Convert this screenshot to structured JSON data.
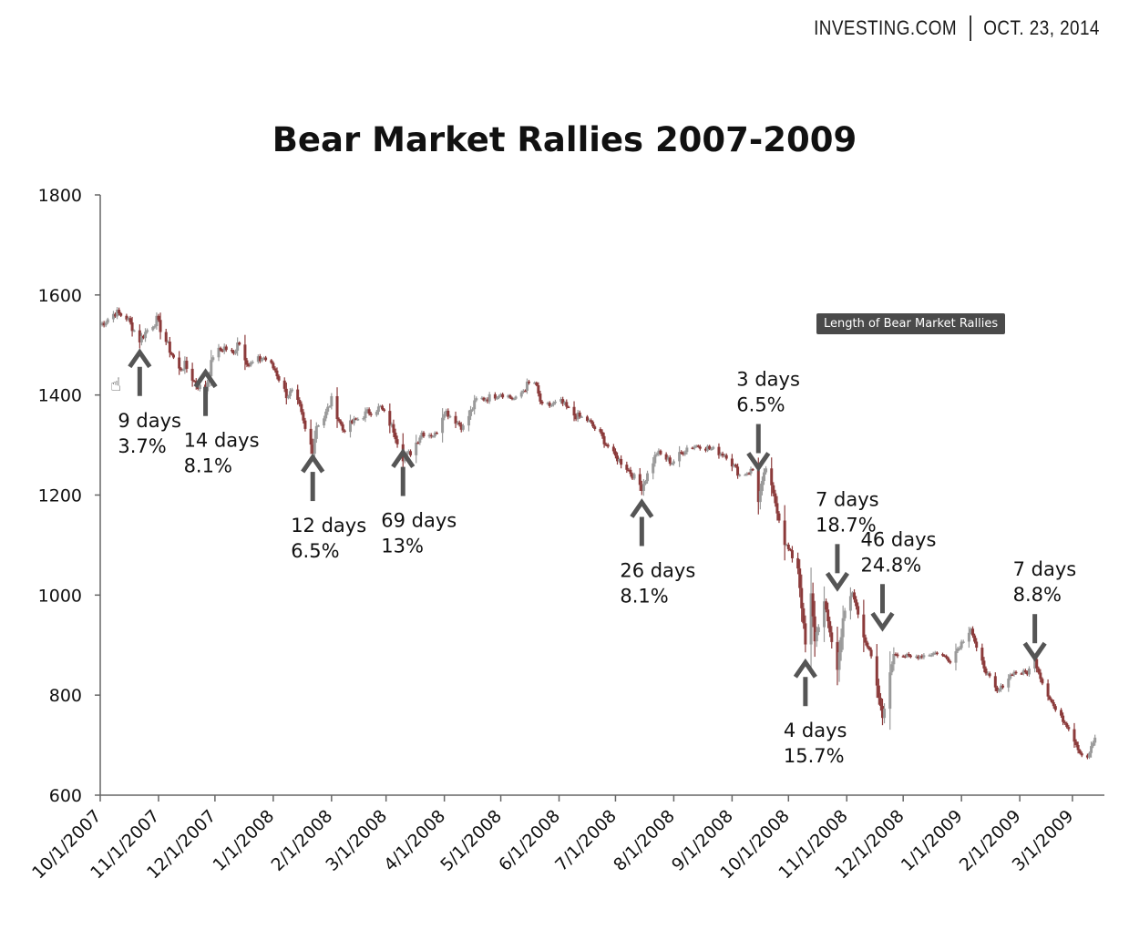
{
  "header": {
    "source": "INVESTING.COM",
    "date": "OCT. 23, 2014"
  },
  "tooltip": "Length of Bear Market Rallies",
  "chart_data": {
    "type": "line",
    "title": "Bear Market Rallies 2007-2009",
    "xlabel": "",
    "ylabel": "",
    "ylim": [
      600,
      1800
    ],
    "yticks": [
      600,
      800,
      1000,
      1200,
      1400,
      1600,
      1800
    ],
    "xlim": [
      "2007-10-01",
      "2009-03-18"
    ],
    "xticks": [
      "10/1/2007",
      "11/1/2007",
      "12/1/2007",
      "1/1/2008",
      "2/1/2008",
      "3/1/2008",
      "4/1/2008",
      "5/1/2008",
      "6/1/2008",
      "7/1/2008",
      "8/1/2008",
      "9/1/2008",
      "10/1/2008",
      "11/1/2008",
      "12/1/2008",
      "1/1/2009",
      "2/1/2009",
      "3/1/2009"
    ],
    "grid": false,
    "series": [
      {
        "values": [
          [
            "2007-10-01",
            1540
          ],
          [
            "2007-10-09",
            1565
          ],
          [
            "2007-10-15",
            1555
          ],
          [
            "2007-10-22",
            1510
          ],
          [
            "2007-10-26",
            1530
          ],
          [
            "2007-10-31",
            1550
          ],
          [
            "2007-11-07",
            1490
          ],
          [
            "2007-11-12",
            1450
          ],
          [
            "2007-11-15",
            1460
          ],
          [
            "2007-11-21",
            1420
          ],
          [
            "2007-11-26",
            1410
          ],
          [
            "2007-11-30",
            1480
          ],
          [
            "2007-12-06",
            1495
          ],
          [
            "2007-12-11",
            1480
          ],
          [
            "2007-12-13",
            1510
          ],
          [
            "2007-12-19",
            1460
          ],
          [
            "2007-12-27",
            1475
          ],
          [
            "2008-01-02",
            1450
          ],
          [
            "2008-01-08",
            1400
          ],
          [
            "2008-01-11",
            1405
          ],
          [
            "2008-01-15",
            1375
          ],
          [
            "2008-01-18",
            1330
          ],
          [
            "2008-01-22",
            1290
          ],
          [
            "2008-01-24",
            1340
          ],
          [
            "2008-01-28",
            1355
          ],
          [
            "2008-02-01",
            1390
          ],
          [
            "2008-02-07",
            1330
          ],
          [
            "2008-02-14",
            1350
          ],
          [
            "2008-02-20",
            1365
          ],
          [
            "2008-02-27",
            1375
          ],
          [
            "2008-03-05",
            1330
          ],
          [
            "2008-03-10",
            1275
          ],
          [
            "2008-03-14",
            1285
          ],
          [
            "2008-03-20",
            1325
          ],
          [
            "2008-03-27",
            1320
          ],
          [
            "2008-04-01",
            1370
          ],
          [
            "2008-04-11",
            1335
          ],
          [
            "2008-04-18",
            1390
          ],
          [
            "2008-04-25",
            1395
          ],
          [
            "2008-05-01",
            1405
          ],
          [
            "2008-05-09",
            1390
          ],
          [
            "2008-05-15",
            1420
          ],
          [
            "2008-05-19",
            1425
          ],
          [
            "2008-05-23",
            1375
          ],
          [
            "2008-06-02",
            1385
          ],
          [
            "2008-06-09",
            1360
          ],
          [
            "2008-06-16",
            1350
          ],
          [
            "2008-06-23",
            1320
          ],
          [
            "2008-06-30",
            1280
          ],
          [
            "2008-07-07",
            1255
          ],
          [
            "2008-07-15",
            1215
          ],
          [
            "2008-07-23",
            1285
          ],
          [
            "2008-07-31",
            1265
          ],
          [
            "2008-08-08",
            1295
          ],
          [
            "2008-08-15",
            1300
          ],
          [
            "2008-08-22",
            1290
          ],
          [
            "2008-08-29",
            1280
          ],
          [
            "2008-09-05",
            1240
          ],
          [
            "2008-09-12",
            1250
          ],
          [
            "2008-09-15",
            1190
          ],
          [
            "2008-09-19",
            1255
          ],
          [
            "2008-09-24",
            1185
          ],
          [
            "2008-09-29",
            1105
          ],
          [
            "2008-10-06",
            1055
          ],
          [
            "2008-10-10",
            900
          ],
          [
            "2008-10-13",
            1000
          ],
          [
            "2008-10-15",
            910
          ],
          [
            "2008-10-20",
            985
          ],
          [
            "2008-10-27",
            850
          ],
          [
            "2008-10-30",
            955
          ],
          [
            "2008-11-04",
            1005
          ],
          [
            "2008-11-10",
            920
          ],
          [
            "2008-11-14",
            875
          ],
          [
            "2008-11-20",
            755
          ],
          [
            "2008-11-26",
            885
          ],
          [
            "2008-12-05",
            875
          ],
          [
            "2008-12-12",
            880
          ],
          [
            "2008-12-19",
            885
          ],
          [
            "2008-12-26",
            870
          ],
          [
            "2009-01-06",
            935
          ],
          [
            "2009-01-09",
            890
          ],
          [
            "2009-01-15",
            840
          ],
          [
            "2009-01-20",
            805
          ],
          [
            "2009-01-28",
            845
          ],
          [
            "2009-02-05",
            845
          ],
          [
            "2009-02-09",
            870
          ],
          [
            "2009-02-13",
            825
          ],
          [
            "2009-02-20",
            770
          ],
          [
            "2009-02-27",
            735
          ],
          [
            "2009-03-05",
            685
          ],
          [
            "2009-03-09",
            676
          ],
          [
            "2009-03-13",
            715
          ]
        ]
      }
    ],
    "annotations": [
      {
        "text_line1": "9 days",
        "text_line2": "3.7%",
        "x": "2007-10-22",
        "y": 1500,
        "direction": "up"
      },
      {
        "text_line1": "14 days",
        "text_line2": "8.1%",
        "x": "2007-11-26",
        "y": 1460,
        "direction": "up"
      },
      {
        "text_line1": "12 days",
        "text_line2": "6.5%",
        "x": "2008-01-22",
        "y": 1290,
        "direction": "up"
      },
      {
        "text_line1": "69 days",
        "text_line2": "13%",
        "x": "2008-03-10",
        "y": 1300,
        "direction": "up"
      },
      {
        "text_line1": "26 days",
        "text_line2": "8.1%",
        "x": "2008-07-15",
        "y": 1200,
        "direction": "up"
      },
      {
        "text_line1": "3 days",
        "text_line2": "6.5%",
        "x": "2008-09-15",
        "y": 1240,
        "direction": "down"
      },
      {
        "text_line1": "4 days",
        "text_line2": "15.7%",
        "x": "2008-10-10",
        "y": 880,
        "direction": "up"
      },
      {
        "text_line1": "7 days",
        "text_line2": "18.7%",
        "x": "2008-10-27",
        "y": 1000,
        "direction": "down"
      },
      {
        "text_line1": "46 days",
        "text_line2": "24.8%",
        "x": "2008-11-20",
        "y": 920,
        "direction": "down"
      },
      {
        "text_line1": "7 days",
        "text_line2": "8.8%",
        "x": "2009-02-09",
        "y": 860,
        "direction": "down"
      }
    ],
    "colors": {
      "down": "#8b3a3a",
      "up": "#9a9a9a",
      "axis": "#666666",
      "arrow": "#555555"
    }
  }
}
